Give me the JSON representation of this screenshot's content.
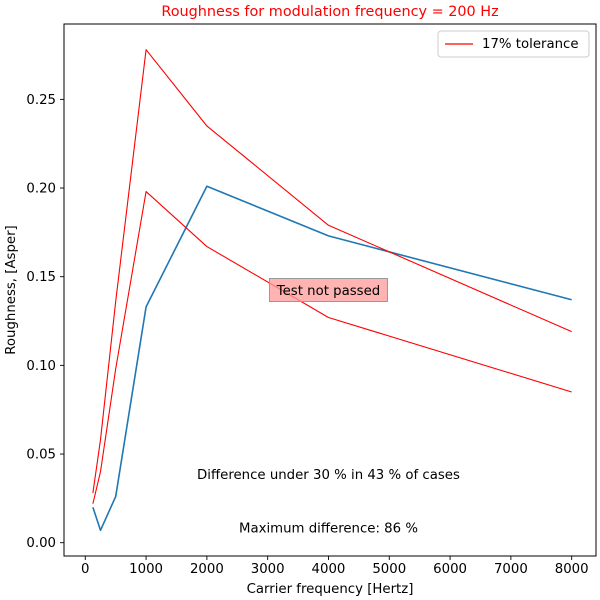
{
  "chart_data": {
    "type": "line",
    "title": "Roughness for modulation frequency = 200 Hz",
    "title_color": "#ff0000",
    "xlabel": "Carrier frequency [Hertz]",
    "ylabel": "Roughness, [Asper]",
    "xlim": [
      -350,
      8400
    ],
    "ylim": [
      -0.0075,
      0.2925
    ],
    "x_ticks": [
      0,
      1000,
      2000,
      3000,
      4000,
      5000,
      6000,
      7000,
      8000
    ],
    "x_tick_labels": [
      "0",
      "1000",
      "2000",
      "3000",
      "4000",
      "5000",
      "6000",
      "7000",
      "8000"
    ],
    "y_ticks": [
      0.0,
      0.05,
      0.1,
      0.15,
      0.2,
      0.25
    ],
    "y_tick_labels": [
      "0.00",
      "0.05",
      "0.10",
      "0.15",
      "0.20",
      "0.25"
    ],
    "grid": false,
    "legend": {
      "placement": "top-right",
      "entries": [
        {
          "label": "17% tolerance",
          "color": "#ff0000"
        }
      ]
    },
    "series": [
      {
        "color": "#1f77b4",
        "x": [
          125,
          250,
          500,
          1000,
          2000,
          4000,
          8000
        ],
        "y": [
          0.02,
          0.007,
          0.026,
          0.133,
          0.201,
          0.173,
          0.137
        ]
      },
      {
        "name": "17% tolerance",
        "color": "#ff0000",
        "x": [
          125,
          250,
          500,
          1000,
          2000,
          4000,
          8000
        ],
        "y": [
          0.028,
          0.058,
          0.136,
          0.278,
          0.235,
          0.179,
          0.119
        ]
      },
      {
        "color": "#ff0000",
        "x": [
          125,
          250,
          500,
          1000,
          2000,
          4000,
          8000
        ],
        "y": [
          0.022,
          0.04,
          0.098,
          0.198,
          0.167,
          0.127,
          0.085
        ]
      }
    ],
    "annotations": [
      {
        "text": "Test not passed",
        "x": 4000,
        "y": 0.1425,
        "box_color": "#ff9999"
      },
      {
        "text": "Difference under 30 % in 43 % of cases",
        "x": 4000,
        "y": 0.0385
      },
      {
        "text": "Maximum difference: 86 %",
        "x": 4000,
        "y": 0.0085
      }
    ]
  }
}
